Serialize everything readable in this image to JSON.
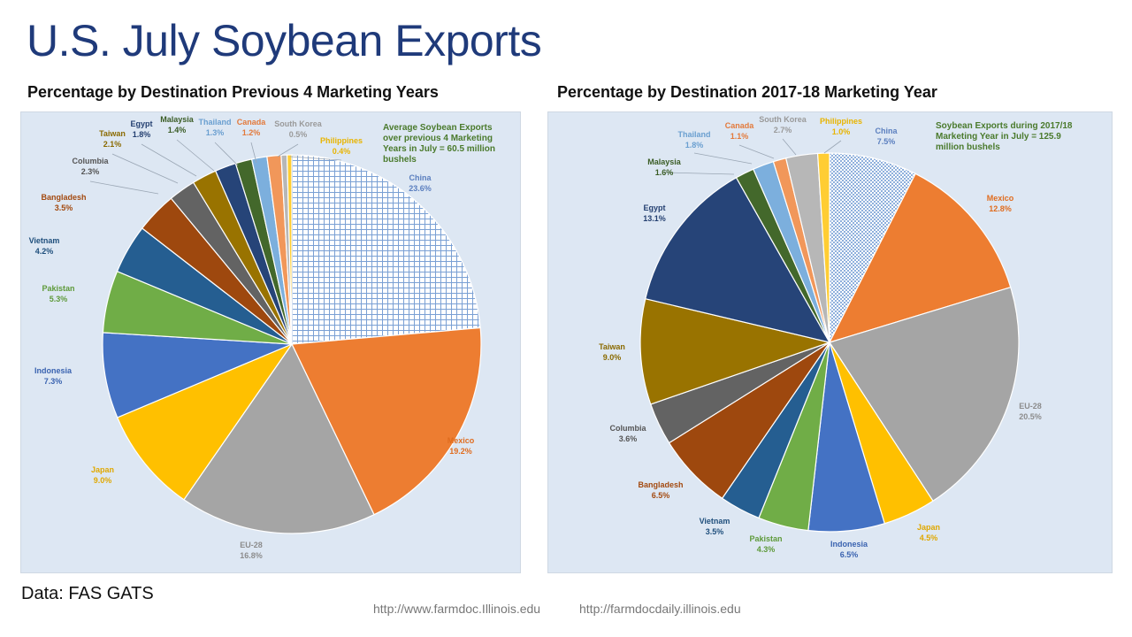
{
  "title": "U.S. July Soybean Exports",
  "source_note": "Data: FAS GATS",
  "urls": [
    "http://www.farmdoc.Illinois.edu",
    "http://farmdocdaily.illinois.edu"
  ],
  "colors": {
    "China": "#dbe6f4",
    "Mexico": "#ed7d31",
    "EU-28": "#a5a5a5",
    "Japan": "#ffc000",
    "Indonesia": "#4472c4",
    "Pakistan": "#70ad47",
    "Vietnam": "#255e91",
    "Bangladesh": "#9e480e",
    "Columbia": "#636363",
    "Taiwan": "#997300",
    "Egypt": "#264478",
    "Malaysia": "#43682b",
    "Thailand": "#7cafdd",
    "Canada": "#f1975a",
    "South Korea": "#b7b7b7",
    "Philippines": "#ffcd33"
  },
  "label_colors": {
    "China": "#5b7fbf",
    "Mexico": "#e06c1e",
    "EU-28": "#8c8c8c",
    "Japan": "#e0a800",
    "Indonesia": "#3a63b0",
    "Pakistan": "#5e9a3a",
    "Vietnam": "#1f4f7c",
    "Bangladesh": "#a34a10",
    "Columbia": "#555555",
    "Taiwan": "#8a6a00",
    "Egypt": "#233f70",
    "Malaysia": "#3a5c25",
    "Thailand": "#6a9fd0",
    "Canada": "#e3793a",
    "South Korea": "#9a9a9a",
    "Philippines": "#e8b400"
  },
  "chart_data": [
    {
      "type": "pie",
      "title": "Percentage by Destination Previous 4 Marketing Years",
      "annotation": [
        "Average Soybean Exports",
        "over previous 4 Marketing",
        "Years in July = 60.5 million",
        "bushels"
      ],
      "slices": [
        {
          "name": "China",
          "value": 23.6,
          "label": "23.6%"
        },
        {
          "name": "Mexico",
          "value": 19.2,
          "label": "19.2%"
        },
        {
          "name": "EU-28",
          "value": 16.8,
          "label": "16.8%"
        },
        {
          "name": "Japan",
          "value": 9.0,
          "label": "9.0%"
        },
        {
          "name": "Indonesia",
          "value": 7.3,
          "label": "7.3%"
        },
        {
          "name": "Pakistan",
          "value": 5.3,
          "label": "5.3%"
        },
        {
          "name": "Vietnam",
          "value": 4.2,
          "label": "4.2%"
        },
        {
          "name": "Bangladesh",
          "value": 3.5,
          "label": "3.5%"
        },
        {
          "name": "Columbia",
          "value": 2.3,
          "label": "2.3%"
        },
        {
          "name": "Taiwan",
          "value": 2.1,
          "label": "2.1%"
        },
        {
          "name": "Egypt",
          "value": 1.8,
          "label": "1.8%"
        },
        {
          "name": "Malaysia",
          "value": 1.4,
          "label": "1.4%"
        },
        {
          "name": "Thailand",
          "value": 1.3,
          "label": "1.3%"
        },
        {
          "name": "Canada",
          "value": 1.2,
          "label": "1.2%"
        },
        {
          "name": "South Korea",
          "value": 0.5,
          "label": "0.5%"
        },
        {
          "name": "Philippines",
          "value": 0.4,
          "label": "0.4%"
        }
      ]
    },
    {
      "type": "pie",
      "title": "Percentage by Destination 2017-18 Marketing Year",
      "annotation": [
        "Soybean Exports during 2017/18",
        "Marketing Year in July = 125.9",
        "million  bushels"
      ],
      "slices": [
        {
          "name": "China",
          "value": 7.5,
          "label": "7.5%"
        },
        {
          "name": "Mexico",
          "value": 12.8,
          "label": "12.8%"
        },
        {
          "name": "EU-28",
          "value": 20.5,
          "label": "20.5%"
        },
        {
          "name": "Japan",
          "value": 4.5,
          "label": "4.5%"
        },
        {
          "name": "Indonesia",
          "value": 6.5,
          "label": "6.5%"
        },
        {
          "name": "Pakistan",
          "value": 4.3,
          "label": "4.3%"
        },
        {
          "name": "Vietnam",
          "value": 3.5,
          "label": "3.5%"
        },
        {
          "name": "Bangladesh",
          "value": 6.5,
          "label": "6.5%"
        },
        {
          "name": "Columbia",
          "value": 3.6,
          "label": "3.6%"
        },
        {
          "name": "Taiwan",
          "value": 9.0,
          "label": "9.0%"
        },
        {
          "name": "Egypt",
          "value": 13.1,
          "label": "13.1%"
        },
        {
          "name": "Malaysia",
          "value": 1.6,
          "label": "1.6%"
        },
        {
          "name": "Thailand",
          "value": 1.8,
          "label": "1.8%"
        },
        {
          "name": "Canada",
          "value": 1.1,
          "label": "1.1%"
        },
        {
          "name": "South Korea",
          "value": 2.7,
          "label": "2.7%"
        },
        {
          "name": "Philippines",
          "value": 1.0,
          "label": "1.0%"
        }
      ]
    }
  ]
}
